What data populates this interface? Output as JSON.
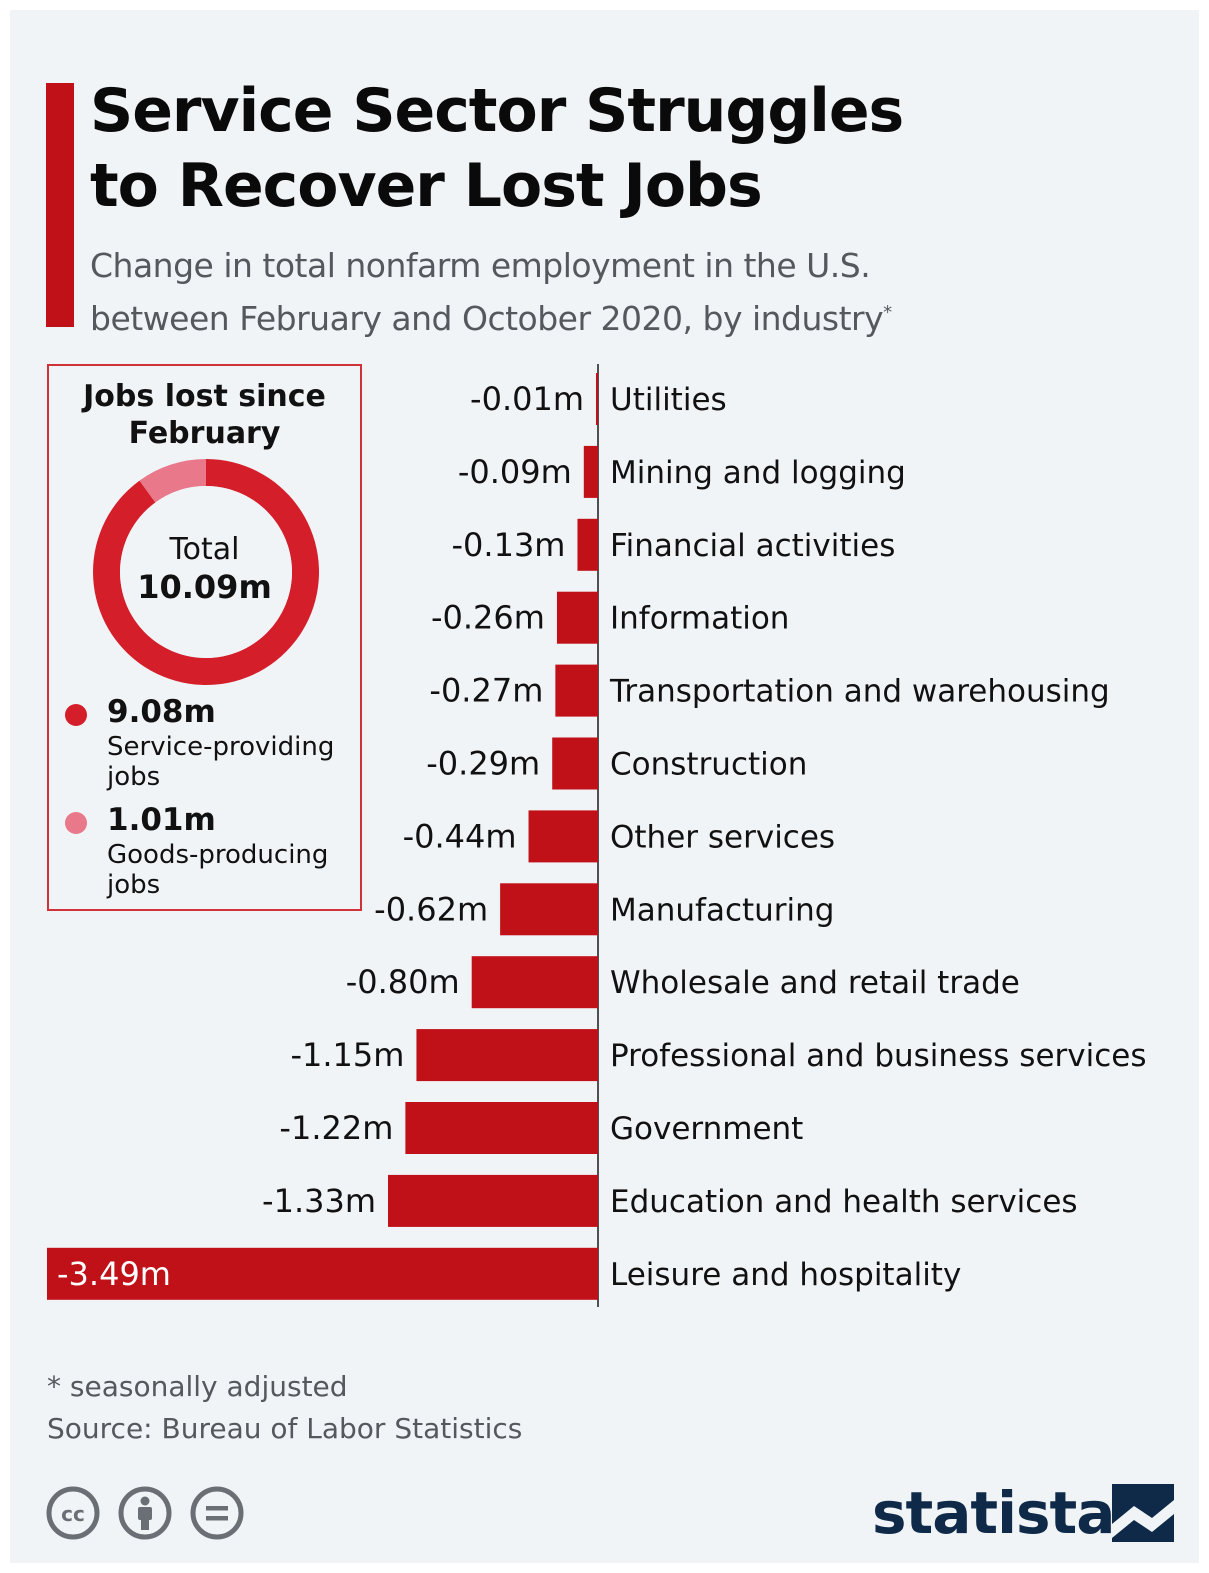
{
  "header": {
    "title_line1": "Service Sector Struggles",
    "title_line2": "to Recover Lost Jobs",
    "subtitle_line1": "Change in total nonfarm employment in the U.S.",
    "subtitle_line2": "between February and October 2020, by industry",
    "subtitle_marker": "*"
  },
  "donut": {
    "title_line1": "Jobs lost since",
    "title_line2": "February",
    "total_label": "Total",
    "total_value": "10.09m",
    "legend": [
      {
        "value": "9.08m",
        "label_line1": "Service-providing",
        "label_line2": "jobs",
        "color": "#d41f2b",
        "share": 9.08
      },
      {
        "value": "1.01m",
        "label_line1": "Goods-producing",
        "label_line2": "jobs",
        "color": "#e8788a",
        "share": 1.01
      }
    ]
  },
  "chart_data": {
    "type": "bar",
    "orientation": "horizontal",
    "title": "Service Sector Struggles to Recover Lost Jobs",
    "subtitle": "Change in total nonfarm employment in the U.S. between February and October 2020, by industry*",
    "unit": "m",
    "categories": [
      "Utilities",
      "Mining and logging",
      "Financial activities",
      "Information",
      "Transportation and warehousing",
      "Construction",
      "Other services",
      "Manufacturing",
      "Wholesale and retail trade",
      "Professional and business services",
      "Government",
      "Education and health services",
      "Leisure and hospitality"
    ],
    "values": [
      -0.01,
      -0.09,
      -0.13,
      -0.26,
      -0.27,
      -0.29,
      -0.44,
      -0.62,
      -0.8,
      -1.15,
      -1.22,
      -1.33,
      -3.49
    ],
    "data_labels": [
      "-0.01m",
      "-0.09m",
      "-0.13m",
      "-0.26m",
      "-0.27m",
      "-0.29m",
      "-0.44m",
      "-0.62m",
      "-0.80m",
      "-1.15m",
      "-1.22m",
      "-1.33m",
      "-3.49m"
    ],
    "xlim": [
      -3.49,
      0
    ],
    "bar_color": "#c01018",
    "grid": false
  },
  "footer": {
    "footnote": "* seasonally adjusted",
    "source": "Source: Bureau of Labor Statistics",
    "cc_icons": [
      "cc-icon",
      "by-icon",
      "nd-icon"
    ],
    "brand": "statista"
  },
  "colors": {
    "accent": "#c01018",
    "background": "#f1f4f7",
    "brand": "#0f2a48"
  }
}
